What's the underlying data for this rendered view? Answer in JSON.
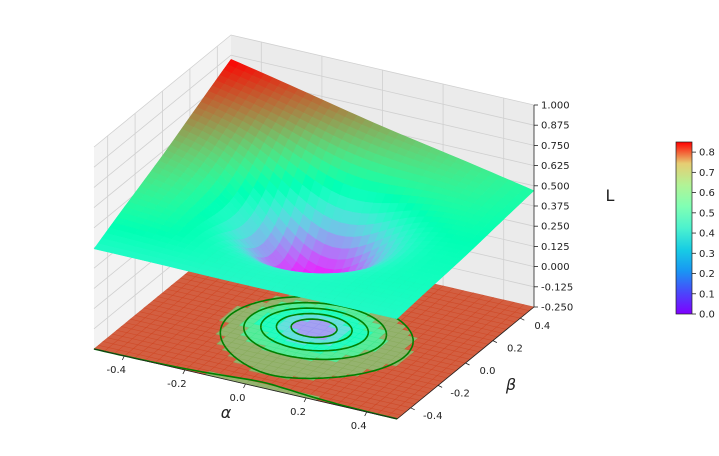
{
  "chart_data": {
    "type": "surface3d",
    "title": "",
    "xlabel": "α",
    "ylabel": "β",
    "zlabel": "L",
    "xlim": [
      -0.5,
      0.5
    ],
    "ylim": [
      -0.5,
      0.5
    ],
    "zlim": [
      -0.25,
      1.0
    ],
    "x_ticks": [
      "-0.4",
      "-0.2",
      "0.0",
      "0.2",
      "0.4"
    ],
    "y_ticks": [
      "-0.4",
      "-0.2",
      "0.0",
      "0.2",
      "0.4"
    ],
    "z_ticks": [
      "-0.250",
      "-0.125",
      "0.000",
      "0.125",
      "0.250",
      "0.375",
      "0.500",
      "0.625",
      "0.750",
      "0.875",
      "1.000"
    ],
    "grid": true,
    "colormap": "rainbow",
    "colorbar": {
      "range": [
        0.0,
        0.85
      ],
      "ticks": [
        "0.0",
        "0.1",
        "0.2",
        "0.3",
        "0.4",
        "0.5",
        "0.6",
        "0.7",
        "0.8"
      ]
    },
    "surface_samples": [
      {
        "alpha": -0.5,
        "beta": -0.5,
        "L": 0.37
      },
      {
        "alpha": -0.5,
        "beta": 0.5,
        "L": 0.85
      },
      {
        "alpha": 0.5,
        "beta": -0.5,
        "L": 0.37
      },
      {
        "alpha": 0.5,
        "beta": 0.5,
        "L": 0.47
      },
      {
        "alpha": 0.0,
        "beta": 0.0,
        "L": 0.0
      }
    ],
    "contour_offset": -0.25,
    "contour_color": "#008000",
    "contour_levels": [
      0.04,
      0.1,
      0.18,
      0.27,
      0.37
    ]
  }
}
